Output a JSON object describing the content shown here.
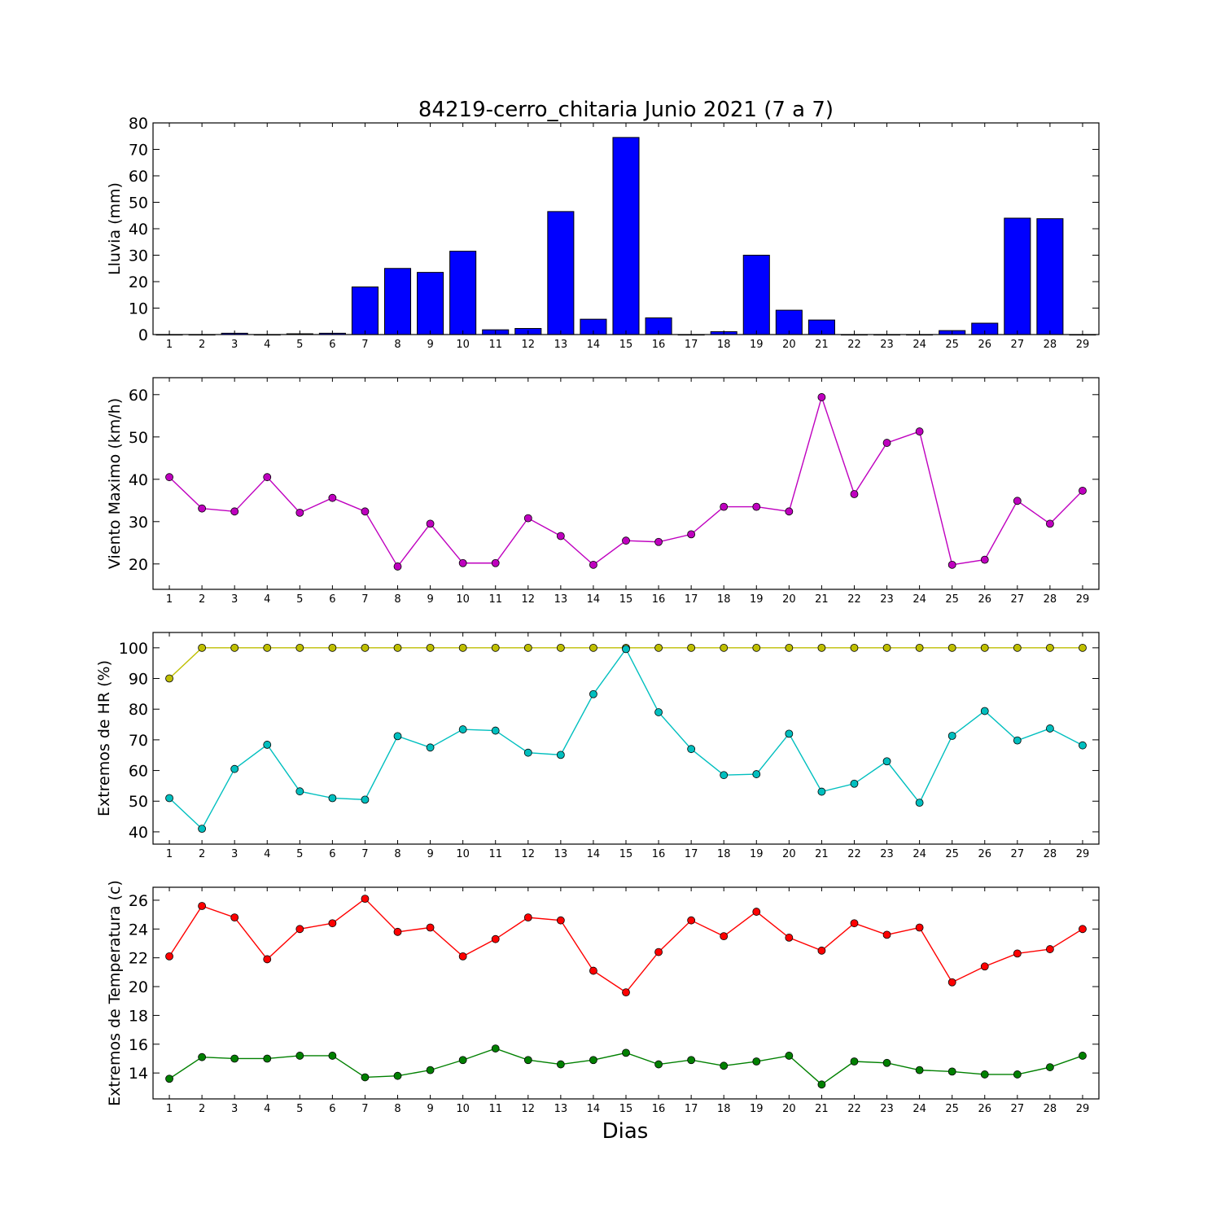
{
  "figure": {
    "title": "84219-cerro_chitaria Junio 2021  (7 a 7)",
    "xlabel": "Dias"
  },
  "chart_data": [
    {
      "type": "bar",
      "ylabel": "Lluvia (mm)",
      "x": [
        1,
        2,
        3,
        4,
        5,
        6,
        7,
        8,
        9,
        10,
        11,
        12,
        13,
        14,
        15,
        16,
        17,
        18,
        19,
        20,
        21,
        22,
        23,
        24,
        25,
        26,
        27,
        28,
        29
      ],
      "xlim": [
        0.5,
        29.5
      ],
      "ylim": [
        0,
        80
      ],
      "yticks": [
        0,
        10,
        20,
        30,
        40,
        50,
        60,
        70,
        80
      ],
      "grid": false,
      "series": [
        {
          "color": "#0000ff",
          "values": [
            0,
            0,
            0.5,
            0,
            0.3,
            0.5,
            18,
            25,
            23.5,
            31.5,
            1.8,
            2.3,
            46.5,
            5.8,
            74.5,
            6.3,
            0,
            1.1,
            30,
            9.2,
            5.5,
            0,
            0,
            0,
            1.5,
            4.3,
            44,
            43.8,
            0
          ]
        }
      ]
    },
    {
      "type": "line",
      "ylabel": "Viento Maximo (km/h)",
      "x": [
        1,
        2,
        3,
        4,
        5,
        6,
        7,
        8,
        9,
        10,
        11,
        12,
        13,
        14,
        15,
        16,
        17,
        18,
        19,
        20,
        21,
        22,
        23,
        24,
        25,
        26,
        27,
        28,
        29
      ],
      "xlim": [
        0.5,
        29.5
      ],
      "ylim": [
        14,
        64
      ],
      "yticks": [
        20,
        30,
        40,
        50,
        60
      ],
      "grid": false,
      "series": [
        {
          "color": "#bf00bf",
          "values": [
            40.5,
            33.1,
            32.4,
            40.5,
            32.1,
            35.6,
            32.4,
            19.4,
            29.5,
            20.2,
            20.2,
            30.8,
            26.6,
            19.8,
            25.5,
            25.2,
            27,
            33.5,
            33.5,
            32.4,
            59.4,
            36.5,
            48.6,
            51.3,
            19.8,
            21,
            34.9,
            29.5,
            37.3
          ]
        }
      ]
    },
    {
      "type": "line",
      "ylabel": "Extremos de HR (%)",
      "x": [
        1,
        2,
        3,
        4,
        5,
        6,
        7,
        8,
        9,
        10,
        11,
        12,
        13,
        14,
        15,
        16,
        17,
        18,
        19,
        20,
        21,
        22,
        23,
        24,
        25,
        26,
        27,
        28,
        29
      ],
      "xlim": [
        0.5,
        29.5
      ],
      "ylim": [
        36,
        105
      ],
      "yticks": [
        40,
        50,
        60,
        70,
        80,
        90,
        100
      ],
      "grid": false,
      "series": [
        {
          "color": "#bfbf00",
          "values": [
            90,
            100,
            100,
            100,
            100,
            100,
            100,
            100,
            100,
            100,
            100,
            100,
            100,
            100,
            100,
            100,
            100,
            100,
            100,
            100,
            100,
            100,
            100,
            100,
            100,
            100,
            100,
            100,
            100
          ]
        },
        {
          "color": "#00bfbf",
          "values": [
            51,
            41,
            60.5,
            68.4,
            53.2,
            51,
            50.5,
            71.2,
            67.5,
            73.4,
            73,
            65.8,
            65.1,
            84.9,
            99.6,
            79,
            67,
            58.5,
            58.8,
            72,
            53.1,
            55.7,
            63,
            49.5,
            71.3,
            79.4,
            69.8,
            73.7,
            68.2
          ]
        }
      ]
    },
    {
      "type": "line",
      "ylabel": "Extremos de Temperatura (c)",
      "x": [
        1,
        2,
        3,
        4,
        5,
        6,
        7,
        8,
        9,
        10,
        11,
        12,
        13,
        14,
        15,
        16,
        17,
        18,
        19,
        20,
        21,
        22,
        23,
        24,
        25,
        26,
        27,
        28,
        29
      ],
      "xlim": [
        0.5,
        29.5
      ],
      "ylim": [
        12.2,
        26.9
      ],
      "yticks": [
        14,
        16,
        18,
        20,
        22,
        24,
        26
      ],
      "grid": false,
      "series": [
        {
          "color": "#ff0000",
          "values": [
            22.1,
            25.6,
            24.8,
            21.9,
            24,
            24.4,
            26.1,
            23.8,
            24.1,
            22.1,
            23.3,
            24.8,
            24.6,
            21.1,
            19.6,
            22.4,
            24.6,
            23.5,
            25.2,
            23.4,
            22.5,
            24.4,
            23.6,
            24.1,
            20.3,
            21.4,
            22.3,
            22.6,
            24
          ]
        },
        {
          "color": "#008000",
          "values": [
            13.6,
            15.1,
            15,
            15,
            15.2,
            15.2,
            13.7,
            13.8,
            14.2,
            14.9,
            15.7,
            14.9,
            14.6,
            14.9,
            15.4,
            14.6,
            14.9,
            14.5,
            14.8,
            15.2,
            13.2,
            14.8,
            14.7,
            14.2,
            14.1,
            13.9,
            13.9,
            14.4,
            15.2
          ]
        }
      ]
    }
  ]
}
